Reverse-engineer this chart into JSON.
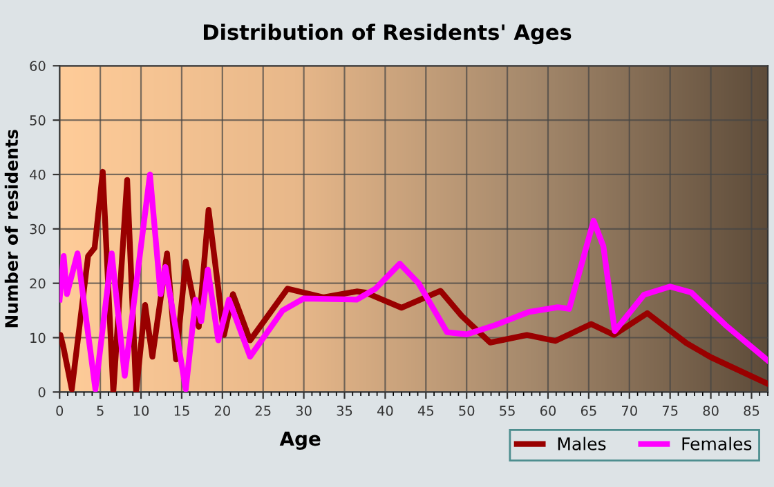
{
  "chart_data": {
    "type": "line",
    "title": "Distribution of Residents' Ages",
    "xlabel": "Age",
    "ylabel": "Number of residents",
    "xlim": [
      0,
      87
    ],
    "xticks": [
      0,
      5,
      10,
      15,
      20,
      25,
      30,
      35,
      40,
      45,
      50,
      55,
      60,
      65,
      70,
      75,
      80,
      85
    ],
    "ylim": [
      0,
      60
    ],
    "yticks": [
      0,
      10,
      20,
      30,
      40,
      50,
      60
    ],
    "grid": true,
    "legend": "bottom right",
    "series": [
      {
        "name": "Males",
        "color": "#990000",
        "x": [
          0,
          0.1,
          0.5,
          1.5,
          3.5,
          4.3,
          5.3,
          6.6,
          8.3,
          9.4,
          10.5,
          11.4,
          13.2,
          14.3,
          15.5,
          17.1,
          18.3,
          20.2,
          21.3,
          23.4,
          28,
          32.4,
          36.5,
          37.6,
          42,
          46.8,
          49.4,
          52.9,
          57.4,
          60.9,
          65.3,
          68.1,
          72.2,
          77,
          80,
          87
        ],
        "values": [
          10,
          10.5,
          8,
          0.5,
          25,
          26.5,
          40.5,
          0,
          39,
          0,
          16,
          6.5,
          25.5,
          6,
          24,
          12,
          33.5,
          10.5,
          18,
          9.5,
          19,
          17.4,
          18.5,
          18.3,
          15.5,
          18.6,
          14,
          9.1,
          10.5,
          9.4,
          12.5,
          10.5,
          14.5,
          9,
          6.4,
          1.5
        ]
      },
      {
        "name": "Females",
        "color": "#ff00ff",
        "x": [
          0,
          0.5,
          0.9,
          2.2,
          4.4,
          6.4,
          8,
          11.1,
          12.4,
          13,
          15.5,
          16.7,
          17.4,
          18.2,
          19.5,
          20.8,
          23.4,
          27.4,
          30,
          36.5,
          38.8,
          41.8,
          44.1,
          47.6,
          50,
          53.5,
          57.6,
          61.2,
          62.6,
          64.1,
          65.6,
          66.8,
          68.2,
          71.8,
          75,
          77.6,
          81.8,
          87
        ],
        "values": [
          17,
          25,
          18,
          25.5,
          0.5,
          25.5,
          3,
          40,
          18,
          23,
          0.5,
          17,
          13,
          22.5,
          9.5,
          17,
          6.5,
          15,
          17.2,
          17,
          19,
          23.6,
          20,
          11,
          10.6,
          12.3,
          14.7,
          15.6,
          15.3,
          23.4,
          31.5,
          26.8,
          11.2,
          17.9,
          19.4,
          18.3,
          12.3,
          5.8
        ]
      }
    ]
  }
}
